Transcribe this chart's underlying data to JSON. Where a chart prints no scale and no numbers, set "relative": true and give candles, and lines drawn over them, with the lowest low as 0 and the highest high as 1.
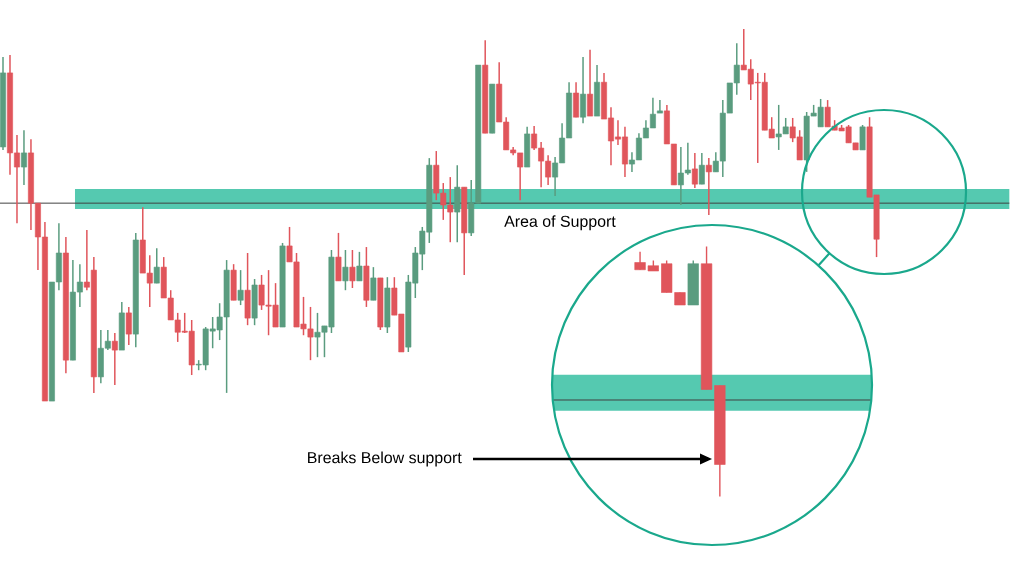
{
  "chart_data": [
    {
      "type": "candlestick",
      "relative": true,
      "categories": [
        null,
        null,
        null,
        null,
        null,
        null,
        null,
        null,
        null,
        null,
        null,
        null,
        null,
        null,
        null,
        null,
        null,
        null,
        null,
        null,
        null,
        null,
        null,
        null,
        null,
        null,
        null,
        null,
        null,
        null,
        null,
        null,
        null,
        null,
        null,
        null,
        null,
        null,
        null,
        null,
        null,
        null,
        null,
        null,
        null,
        null,
        null,
        null,
        null,
        null,
        null,
        null,
        null,
        null,
        null,
        null,
        null,
        null,
        null,
        null,
        null,
        null,
        null,
        null,
        null,
        null,
        null,
        null,
        null,
        null,
        null,
        null,
        null,
        null,
        null,
        null,
        null,
        null,
        null,
        null,
        null,
        null,
        null,
        null,
        null,
        null,
        null,
        null,
        null,
        null,
        null,
        null,
        null,
        null,
        null,
        null,
        null,
        null,
        null,
        null,
        null,
        null,
        null,
        null,
        null,
        null,
        null,
        null,
        null,
        null,
        null,
        null,
        null,
        null,
        null,
        null,
        null,
        null,
        null,
        null,
        null,
        null,
        null,
        null,
        null,
        null
      ],
      "ohlc": [
        [
          0.683,
          0.925,
          0.675,
          0.882
        ],
        [
          0.882,
          0.93,
          0.608,
          0.667
        ],
        [
          0.667,
          0.715,
          0.478,
          0.629
        ],
        [
          0.629,
          0.728,
          0.581,
          0.667
        ],
        [
          0.667,
          0.704,
          0.46,
          0.532
        ],
        [
          0.532,
          0.532,
          0.352,
          0.441
        ],
        [
          0.441,
          0.481,
          0,
          0
        ],
        [
          0,
          0.32,
          0,
          0.32
        ],
        [
          0.32,
          0.478,
          0.298,
          0.398
        ],
        [
          0.398,
          0.441,
          0.075,
          0.11
        ],
        [
          0.11,
          0.379,
          0.11,
          0.293
        ],
        [
          0.293,
          0.368,
          0.253,
          0.32
        ],
        [
          0.32,
          0.46,
          0.298,
          0.306
        ],
        [
          0.352,
          0.387,
          0.022,
          0.065
        ],
        [
          0.065,
          0.191,
          0.048,
          0.142
        ],
        [
          0.142,
          0.191,
          0.137,
          0.161
        ],
        [
          0.161,
          0.183,
          0.043,
          0.137
        ],
        [
          0.137,
          0.266,
          0.137,
          0.237
        ],
        [
          0.237,
          0.253,
          0.151,
          0.18
        ],
        [
          0.18,
          0.452,
          0.145,
          0.433
        ],
        [
          0.433,
          0.521,
          0.344,
          0.344
        ],
        [
          0.344,
          0.392,
          0.253,
          0.317
        ],
        [
          0.317,
          0.411,
          0.317,
          0.36
        ],
        [
          0.36,
          0.387,
          0.277,
          0.277
        ],
        [
          0.277,
          0.298,
          0.218,
          0.218
        ],
        [
          0.218,
          0.237,
          0.159,
          0.185
        ],
        [
          0.188,
          0.237,
          0.183,
          0.185
        ],
        [
          0.188,
          0.218,
          0.07,
          0.097
        ],
        [
          0.097,
          0.11,
          0.083,
          0.099
        ],
        [
          0.097,
          0.199,
          0.083,
          0.194
        ],
        [
          0.188,
          0.226,
          0.142,
          0.194
        ],
        [
          0.191,
          0.263,
          0.164,
          0.226
        ],
        [
          0.226,
          0.379,
          0.022,
          0.352
        ],
        [
          0.352,
          0.368,
          0.271,
          0.271
        ],
        [
          0.271,
          0.352,
          0.258,
          0.298
        ],
        [
          0.298,
          0.398,
          0.204,
          0.223
        ],
        [
          0.223,
          0.328,
          0.204,
          0.312
        ],
        [
          0.312,
          0.339,
          0.245,
          0.258
        ],
        [
          0.258,
          0.352,
          0.177,
          0.255
        ],
        [
          0.258,
          0.317,
          0.199,
          0.199
        ],
        [
          0.199,
          0.425,
          0.199,
          0.417
        ],
        [
          0.417,
          0.468,
          0.374,
          0.374
        ],
        [
          0.374,
          0.398,
          0.199,
          0.199
        ],
        [
          0.207,
          0.28,
          0.177,
          0.194
        ],
        [
          0.194,
          0.253,
          0.11,
          0.172
        ],
        [
          0.172,
          0.237,
          0.118,
          0.185
        ],
        [
          0.185,
          0.202,
          0.118,
          0.202
        ],
        [
          0.199,
          0.406,
          0.183,
          0.387
        ],
        [
          0.387,
          0.452,
          0.323,
          0.323
        ],
        [
          0.323,
          0.406,
          0.298,
          0.36
        ],
        [
          0.36,
          0.406,
          0.304,
          0.323
        ],
        [
          0.323,
          0.401,
          0.323,
          0.363
        ],
        [
          0.363,
          0.414,
          0.253,
          0.271
        ],
        [
          0.271,
          0.36,
          0.271,
          0.331
        ],
        [
          0.331,
          0.331,
          0.191,
          0.199
        ],
        [
          0.199,
          0.333,
          0.183,
          0.304
        ],
        [
          0.304,
          0.333,
          0.231,
          0.231
        ],
        [
          0.234,
          0.234,
          0.132,
          0.132
        ],
        [
          0.145,
          0.339,
          0.132,
          0.32
        ],
        [
          0.317,
          0.414,
          0.277,
          0.398
        ],
        [
          0.395,
          0.468,
          0.352,
          0.457
        ],
        [
          0.454,
          0.653,
          0.425,
          0.634
        ],
        [
          0.634,
          0.672,
          0.54,
          0.559
        ],
        [
          0.559,
          0.586,
          0.487,
          0.527
        ],
        [
          0.527,
          0.602,
          0.427,
          0.508
        ],
        [
          0.508,
          0.634,
          0.427,
          0.575
        ],
        [
          0.575,
          0.575,
          0.339,
          0.452
        ],
        [
          0.452,
          0.594,
          0.444,
          0.532
        ],
        [
          0.532,
          0.903,
          0.532,
          0.903
        ],
        [
          0.903,
          0.97,
          0.72,
          0.72
        ],
        [
          0.72,
          0.852,
          0.72,
          0.852
        ],
        [
          0.852,
          0.911,
          0.75,
          0.75
        ],
        [
          0.75,
          0.763,
          0.675,
          0.675
        ],
        [
          0.675,
          0.683,
          0.661,
          0.667
        ],
        [
          0.667,
          0.667,
          0.54,
          0.629
        ],
        [
          0.629,
          0.737,
          0.629,
          0.718
        ],
        [
          0.718,
          0.739,
          0.675,
          0.68
        ],
        [
          0.68,
          0.696,
          0.575,
          0.645
        ],
        [
          0.645,
          0.661,
          0.581,
          0.602
        ],
        [
          0.602,
          0.656,
          0.551,
          0.64
        ],
        [
          0.64,
          0.747,
          0.64,
          0.707
        ],
        [
          0.707,
          0.857,
          0.707,
          0.828
        ],
        [
          0.828,
          0.857,
          0.763,
          0.763
        ],
        [
          0.763,
          0.925,
          0.747,
          0.825
        ],
        [
          0.825,
          0.944,
          0.766,
          0.766
        ],
        [
          0.766,
          0.903,
          0.766,
          0.857
        ],
        [
          0.857,
          0.882,
          0.758,
          0.758
        ],
        [
          0.761,
          0.79,
          0.634,
          0.699
        ],
        [
          0.71,
          0.755,
          0.688,
          0.704
        ],
        [
          0.71,
          0.737,
          0.602,
          0.637
        ],
        [
          0.637,
          0.669,
          0.616,
          0.648
        ],
        [
          0.648,
          0.72,
          0.648,
          0.707
        ],
        [
          0.707,
          0.755,
          0.707,
          0.734
        ],
        [
          0.734,
          0.815,
          0.734,
          0.771
        ],
        [
          0.774,
          0.809,
          0.774,
          0.78
        ],
        [
          0.78,
          0.796,
          0.691,
          0.691
        ],
        [
          0.691,
          0.691,
          0.581,
          0.581
        ],
        [
          0.581,
          0.683,
          0.527,
          0.613
        ],
        [
          0.613,
          0.694,
          0.608,
          0.621
        ],
        [
          0.624,
          0.667,
          0.573,
          0.583
        ],
        [
          0.583,
          0.667,
          0.583,
          0.634
        ],
        [
          0.634,
          0.653,
          0.5,
          0.616
        ],
        [
          0.616,
          0.669,
          0.616,
          0.645
        ],
        [
          0.645,
          0.809,
          0.602,
          0.774
        ],
        [
          0.774,
          0.855,
          0.774,
          0.855
        ],
        [
          0.855,
          0.962,
          0.823,
          0.903
        ],
        [
          0.903,
          1,
          0.89,
          0.89
        ],
        [
          0.892,
          0.919,
          0.809,
          0.852
        ],
        [
          0.857,
          0.882,
          0.64,
          0.855
        ],
        [
          0.857,
          0.882,
          0.728,
          0.728
        ],
        [
          0.731,
          0.763,
          0.707,
          0.707
        ],
        [
          0.71,
          0.796,
          0.675,
          0.718
        ],
        [
          0.718,
          0.761,
          0.718,
          0.737
        ],
        [
          0.737,
          0.761,
          0.696,
          0.707
        ],
        [
          0.71,
          0.728,
          0.648,
          0.648
        ],
        [
          0.648,
          0.777,
          0.616,
          0.766
        ],
        [
          0.766,
          0.796,
          0.766,
          0.774
        ],
        [
          0.737,
          0.812,
          0.737,
          0.79
        ],
        [
          0.79,
          0.809,
          0.737,
          0.737
        ],
        [
          0.739,
          0.755,
          0.728,
          0.728
        ],
        [
          0.734,
          0.742,
          0.726,
          0.726
        ],
        [
          0.737,
          0.742,
          0.694,
          0.694
        ],
        [
          0.694,
          0.694,
          0.675,
          0.675
        ],
        [
          0.675,
          0.742,
          0.675,
          0.737
        ],
        [
          0.737,
          0.763,
          0.548,
          0.548
        ],
        [
          0.554,
          0.554,
          0.387,
          0.435
        ]
      ],
      "colors": [
        "#5a9c7f",
        "#e0555b",
        "#e0555b",
        "#5a9c7f",
        "#e0555b",
        "#e0555b",
        "#e0555b",
        "#5a9c7f",
        "#5a9c7f",
        "#e0555b",
        "#5a9c7f",
        "#5a9c7f",
        "#e0555b",
        "#e0555b",
        "#5a9c7f",
        "#5a9c7f",
        "#e0555b",
        "#5a9c7f",
        "#e0555b",
        "#5a9c7f",
        "#e0555b",
        "#e0555b",
        "#5a9c7f",
        "#e0555b",
        "#e0555b",
        "#e0555b",
        "#e0555b",
        "#e0555b",
        "#5a9c7f",
        "#5a9c7f",
        "#5a9c7f",
        "#5a9c7f",
        "#5a9c7f",
        "#e0555b",
        "#5a9c7f",
        "#e0555b",
        "#5a9c7f",
        "#e0555b",
        "#e0555b",
        "#e0555b",
        "#5a9c7f",
        "#e0555b",
        "#e0555b",
        "#e0555b",
        "#e0555b",
        "#5a9c7f",
        "#5a9c7f",
        "#5a9c7f",
        "#e0555b",
        "#5a9c7f",
        "#e0555b",
        "#5a9c7f",
        "#e0555b",
        "#5a9c7f",
        "#e0555b",
        "#5a9c7f",
        "#e0555b",
        "#e0555b",
        "#5a9c7f",
        "#5a9c7f",
        "#5a9c7f",
        "#5a9c7f",
        "#e0555b",
        "#e0555b",
        "#e0555b",
        "#5a9c7f",
        "#e0555b",
        "#5a9c7f",
        "#5a9c7f",
        "#e0555b",
        "#5a9c7f",
        "#e0555b",
        "#e0555b",
        "#e0555b",
        "#e0555b",
        "#5a9c7f",
        "#e0555b",
        "#e0555b",
        "#e0555b",
        "#5a9c7f",
        "#5a9c7f",
        "#5a9c7f",
        "#e0555b",
        "#5a9c7f",
        "#e0555b",
        "#5a9c7f",
        "#e0555b",
        "#e0555b",
        "#e0555b",
        "#e0555b",
        "#5a9c7f",
        "#5a9c7f",
        "#5a9c7f",
        "#5a9c7f",
        "#5a9c7f",
        "#e0555b",
        "#e0555b",
        "#5a9c7f",
        "#5a9c7f",
        "#e0555b",
        "#5a9c7f",
        "#e0555b",
        "#5a9c7f",
        "#5a9c7f",
        "#5a9c7f",
        "#5a9c7f",
        "#e0555b",
        "#e0555b",
        "#e0555b",
        "#e0555b",
        "#e0555b",
        "#5a9c7f",
        "#5a9c7f",
        "#e0555b",
        "#e0555b",
        "#5a9c7f",
        "#5a9c7f",
        "#5a9c7f",
        "#e0555b",
        "#e0555b",
        "#e0555b",
        "#e0555b",
        "#e0555b",
        "#5a9c7f",
        "#e0555b",
        "#e0555b"
      ],
      "bands": [
        {
          "axis": "y",
          "from": 0.516,
          "to": 0.57,
          "label": "Area of Support",
          "color": "#55c9b0"
        }
      ],
      "ref_lines": [
        {
          "axis": "y",
          "value": 0.532,
          "color": "#404040"
        }
      ]
    },
    {
      "type": "candlestick",
      "relative": true,
      "categories": [
        null,
        null,
        null,
        null,
        null,
        null,
        null
      ],
      "ohlc": [
        [
          0.936,
          0.979,
          0.907,
          0.907
        ],
        [
          0.923,
          0.944,
          0.902,
          0.902
        ],
        [
          0.931,
          0.944,
          0.816,
          0.816
        ],
        [
          0.816,
          0.816,
          0.766,
          0.766
        ],
        [
          0.766,
          0.944,
          0.766,
          0.931
        ],
        [
          0.931,
          1,
          0.428,
          0.428
        ],
        [
          0.444,
          0.444,
          0,
          0.128
        ]
      ],
      "colors": [
        "#e0555b",
        "#e0555b",
        "#e0555b",
        "#e0555b",
        "#5a9c7f",
        "#e0555b",
        "#e0555b"
      ],
      "bands": [
        {
          "axis": "y",
          "from": 0.343,
          "to": 0.487,
          "color": "#55c9b0"
        }
      ],
      "ref_lines": [
        {
          "axis": "y",
          "value": 0.386,
          "color": "#404040"
        }
      ],
      "annotations": [
        "Breaks Below support"
      ]
    }
  ]
}
